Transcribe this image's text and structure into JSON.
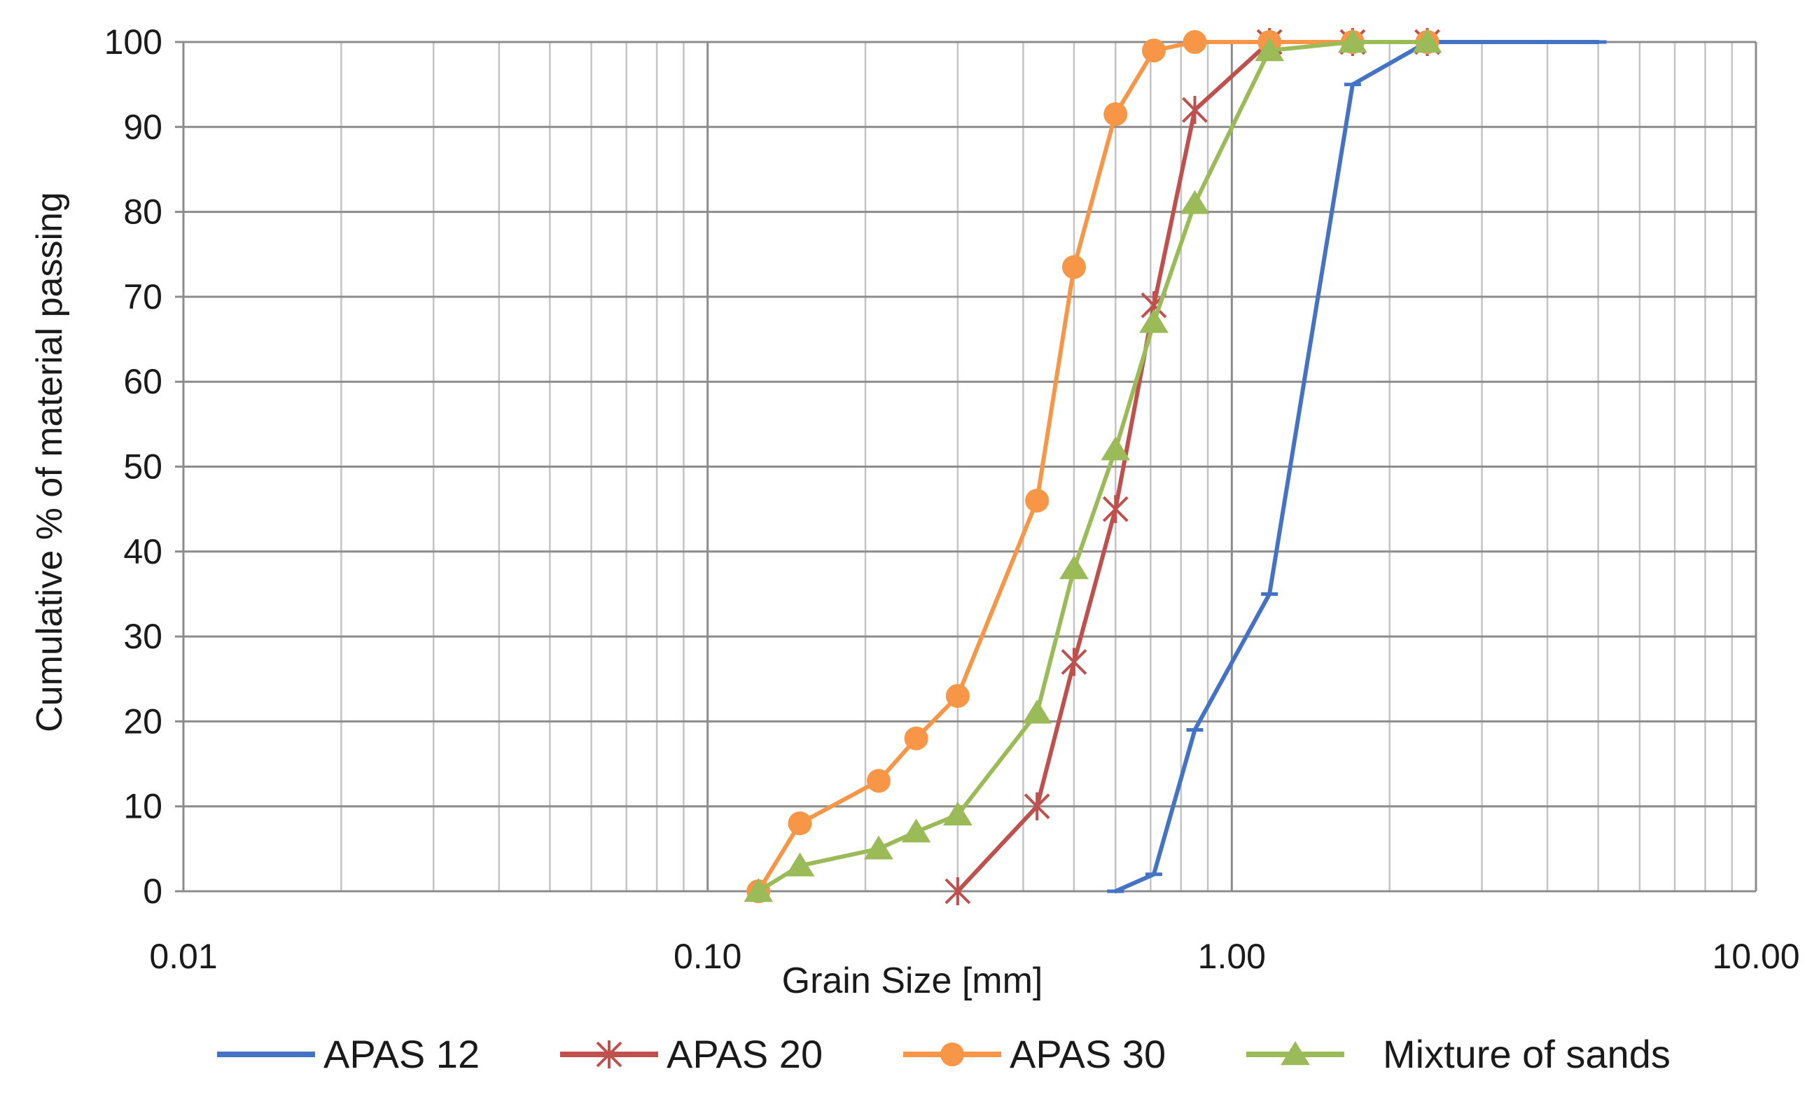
{
  "chart_data": {
    "type": "line",
    "x_scale": "log",
    "xlabel": "Grain Size [mm]",
    "ylabel": "Cumulative % of material passing",
    "xlim": [
      0.01,
      10
    ],
    "ylim": [
      0,
      100
    ],
    "x_ticks": [
      0.01,
      0.1,
      1,
      10
    ],
    "x_tick_labels": [
      "0.01",
      "0.10",
      "1.00",
      "10.00"
    ],
    "y_ticks": [
      0,
      10,
      20,
      30,
      40,
      50,
      60,
      70,
      80,
      90,
      100
    ],
    "y_tick_labels": [
      "0",
      "10",
      "20",
      "30",
      "40",
      "50",
      "60",
      "70",
      "80",
      "90",
      "100"
    ],
    "grid": true,
    "legend_position": "bottom",
    "series": [
      {
        "name": "APAS 12",
        "color": "#4472C4",
        "marker": "dash",
        "points": [
          [
            0.6,
            0
          ],
          [
            0.71,
            2
          ],
          [
            0.85,
            19
          ],
          [
            1.18,
            35
          ],
          [
            1.7,
            95
          ],
          [
            2.36,
            100
          ],
          [
            5.0,
            100
          ]
        ]
      },
      {
        "name": "APAS 20",
        "color": "#C0504D",
        "marker": "star",
        "points": [
          [
            0.3,
            0
          ],
          [
            0.425,
            10
          ],
          [
            0.5,
            27
          ],
          [
            0.6,
            45
          ],
          [
            0.71,
            69
          ],
          [
            0.85,
            92
          ],
          [
            1.18,
            100
          ],
          [
            1.7,
            100
          ],
          [
            2.36,
            100
          ]
        ]
      },
      {
        "name": "APAS 30",
        "color": "#F79646",
        "marker": "circle",
        "points": [
          [
            0.125,
            0
          ],
          [
            0.15,
            8
          ],
          [
            0.212,
            13
          ],
          [
            0.25,
            18
          ],
          [
            0.3,
            23
          ],
          [
            0.425,
            46
          ],
          [
            0.5,
            73.5
          ],
          [
            0.6,
            91.5
          ],
          [
            0.71,
            99
          ],
          [
            0.85,
            100
          ],
          [
            1.18,
            100
          ],
          [
            1.7,
            100
          ],
          [
            2.36,
            100
          ]
        ]
      },
      {
        "name": "Mixture of sands",
        "color": "#9BBB59",
        "marker": "triangle",
        "points": [
          [
            0.125,
            0
          ],
          [
            0.15,
            3
          ],
          [
            0.212,
            5
          ],
          [
            0.25,
            7
          ],
          [
            0.3,
            9
          ],
          [
            0.425,
            21
          ],
          [
            0.5,
            38
          ],
          [
            0.6,
            52
          ],
          [
            0.71,
            67
          ],
          [
            0.85,
            81
          ],
          [
            1.18,
            99
          ],
          [
            1.7,
            100
          ],
          [
            2.36,
            100
          ]
        ]
      }
    ]
  }
}
